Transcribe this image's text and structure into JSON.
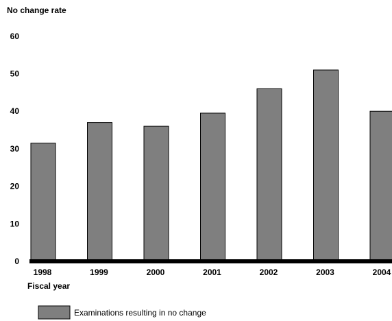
{
  "chart_data": {
    "type": "bar",
    "ylabel": "No change rate",
    "xlabel": "Fiscal year",
    "categories": [
      "1998",
      "1999",
      "2000",
      "2001",
      "2002",
      "2003",
      "2004"
    ],
    "series": [
      {
        "name": "Examinations resulting  in no change",
        "values": [
          31.5,
          37,
          36,
          39.5,
          46,
          51,
          40
        ]
      }
    ],
    "ylim": [
      0,
      60
    ],
    "yticks": [
      "0",
      "10",
      "20",
      "30",
      "40",
      "50",
      "60"
    ],
    "grid": false,
    "legend": "bottom-left",
    "colors": {
      "bar_fill": "#7f7f7f",
      "bar_stroke": "#000000",
      "axis": "#000000",
      "background": "#ffffff"
    }
  }
}
